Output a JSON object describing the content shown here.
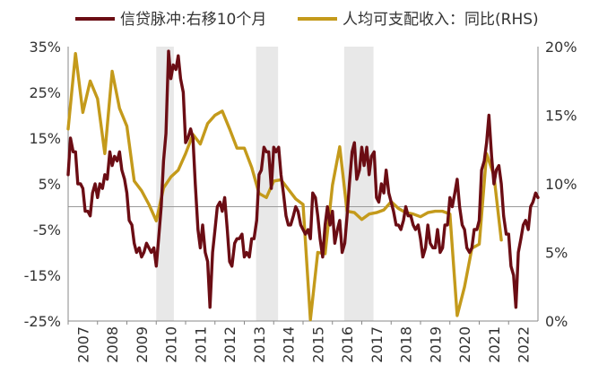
{
  "chart_data": {
    "type": "line",
    "legend_position": "top",
    "colors": {
      "left_series": "#6b0d14",
      "right_series": "#c49a1b",
      "shade": "#e8e8e8",
      "axis": "#888888"
    },
    "x_tick_labels": [
      "2007",
      "2008",
      "2009",
      "2010",
      "2011",
      "2012",
      "2013",
      "2014",
      "2015",
      "2016",
      "2017",
      "2018",
      "2019",
      "2020",
      "2021",
      "2022"
    ],
    "left_axis": {
      "range": [
        -25,
        35
      ],
      "ticks": [
        -25,
        -15,
        -5,
        5,
        15,
        25,
        35
      ],
      "tick_labels": [
        "-25%",
        "-15%",
        "-5%",
        "5%",
        "15%",
        "25%",
        "35%"
      ]
    },
    "right_axis": {
      "range": [
        0,
        20
      ],
      "ticks": [
        0,
        5,
        10,
        15,
        20
      ],
      "tick_labels": [
        "0%",
        "5%",
        "10%",
        "15%",
        "20%"
      ]
    },
    "shaded_periods": [
      [
        2010.0,
        2010.6
      ],
      [
        2013.4,
        2014.15
      ],
      [
        2016.4,
        2017.4
      ]
    ],
    "series": [
      {
        "name": "信贷脉冲:右移10个月",
        "axis": "left",
        "points": [
          [
            2007.0,
            7
          ],
          [
            2007.08,
            15
          ],
          [
            2007.17,
            12
          ],
          [
            2007.25,
            12
          ],
          [
            2007.33,
            5
          ],
          [
            2007.42,
            5
          ],
          [
            2007.5,
            4
          ],
          [
            2007.58,
            -1
          ],
          [
            2007.67,
            -1
          ],
          [
            2007.75,
            -2
          ],
          [
            2007.83,
            3
          ],
          [
            2007.92,
            5
          ],
          [
            2008.0,
            2
          ],
          [
            2008.08,
            5
          ],
          [
            2008.17,
            4
          ],
          [
            2008.25,
            7
          ],
          [
            2008.33,
            6
          ],
          [
            2008.42,
            12
          ],
          [
            2008.5,
            9
          ],
          [
            2008.58,
            11
          ],
          [
            2008.67,
            10
          ],
          [
            2008.75,
            12
          ],
          [
            2008.83,
            8
          ],
          [
            2008.92,
            6
          ],
          [
            2009.0,
            3
          ],
          [
            2009.08,
            -3
          ],
          [
            2009.17,
            -4
          ],
          [
            2009.25,
            -8
          ],
          [
            2009.33,
            -10
          ],
          [
            2009.42,
            -9
          ],
          [
            2009.5,
            -11
          ],
          [
            2009.58,
            -10
          ],
          [
            2009.67,
            -8
          ],
          [
            2009.75,
            -9
          ],
          [
            2009.83,
            -10
          ],
          [
            2009.92,
            -9
          ],
          [
            2010.0,
            -13
          ],
          [
            2010.08,
            -7
          ],
          [
            2010.17,
            0
          ],
          [
            2010.25,
            10
          ],
          [
            2010.33,
            16
          ],
          [
            2010.42,
            34
          ],
          [
            2010.5,
            28
          ],
          [
            2010.58,
            31
          ],
          [
            2010.67,
            30
          ],
          [
            2010.75,
            33
          ],
          [
            2010.83,
            28
          ],
          [
            2010.92,
            25
          ],
          [
            2011.0,
            14
          ],
          [
            2011.08,
            15
          ],
          [
            2011.17,
            17
          ],
          [
            2011.25,
            15
          ],
          [
            2011.33,
            5
          ],
          [
            2011.42,
            -5
          ],
          [
            2011.5,
            -9
          ],
          [
            2011.58,
            -4
          ],
          [
            2011.67,
            -10
          ],
          [
            2011.75,
            -12
          ],
          [
            2011.83,
            -22
          ],
          [
            2011.92,
            -10
          ],
          [
            2012.0,
            -5
          ],
          [
            2012.08,
            0
          ],
          [
            2012.17,
            1
          ],
          [
            2012.25,
            -1
          ],
          [
            2012.33,
            2
          ],
          [
            2012.42,
            -5
          ],
          [
            2012.5,
            -12
          ],
          [
            2012.58,
            -13
          ],
          [
            2012.67,
            -8
          ],
          [
            2012.75,
            -7
          ],
          [
            2012.83,
            -7
          ],
          [
            2012.92,
            -6
          ],
          [
            2013.0,
            -11
          ],
          [
            2013.08,
            -10
          ],
          [
            2013.17,
            -11
          ],
          [
            2013.25,
            -7
          ],
          [
            2013.33,
            -7
          ],
          [
            2013.42,
            -3
          ],
          [
            2013.5,
            7
          ],
          [
            2013.58,
            8
          ],
          [
            2013.67,
            13
          ],
          [
            2013.75,
            12
          ],
          [
            2013.83,
            12
          ],
          [
            2013.92,
            4
          ],
          [
            2014.0,
            13
          ],
          [
            2014.08,
            12
          ],
          [
            2014.17,
            13
          ],
          [
            2014.25,
            7
          ],
          [
            2014.33,
            3
          ],
          [
            2014.42,
            -2
          ],
          [
            2014.5,
            -4
          ],
          [
            2014.58,
            -4
          ],
          [
            2014.67,
            -2
          ],
          [
            2014.75,
            0
          ],
          [
            2014.83,
            -1
          ],
          [
            2014.92,
            -4
          ],
          [
            2015.0,
            -5
          ],
          [
            2015.08,
            -6
          ],
          [
            2015.17,
            -5
          ],
          [
            2015.25,
            -7
          ],
          [
            2015.33,
            3
          ],
          [
            2015.42,
            2
          ],
          [
            2015.5,
            -2
          ],
          [
            2015.58,
            -7
          ],
          [
            2015.67,
            -11
          ],
          [
            2015.75,
            -4
          ],
          [
            2015.83,
            0
          ],
          [
            2015.92,
            -4
          ],
          [
            2016.0,
            -1
          ],
          [
            2016.08,
            -8
          ],
          [
            2016.17,
            -5
          ],
          [
            2016.25,
            -3
          ],
          [
            2016.33,
            -10
          ],
          [
            2016.42,
            -8
          ],
          [
            2016.5,
            -2
          ],
          [
            2016.58,
            5
          ],
          [
            2016.67,
            12
          ],
          [
            2016.75,
            14
          ],
          [
            2016.83,
            6
          ],
          [
            2016.92,
            8
          ],
          [
            2017.0,
            13
          ],
          [
            2017.08,
            9
          ],
          [
            2017.17,
            13
          ],
          [
            2017.25,
            7
          ],
          [
            2017.33,
            11
          ],
          [
            2017.42,
            12
          ],
          [
            2017.5,
            2
          ],
          [
            2017.58,
            1
          ],
          [
            2017.67,
            5
          ],
          [
            2017.75,
            3
          ],
          [
            2017.83,
            8
          ],
          [
            2017.92,
            3
          ],
          [
            2018.0,
            1
          ],
          [
            2018.08,
            -1
          ],
          [
            2018.17,
            -4
          ],
          [
            2018.25,
            -4
          ],
          [
            2018.33,
            -5
          ],
          [
            2018.42,
            -3
          ],
          [
            2018.5,
            0
          ],
          [
            2018.58,
            -2
          ],
          [
            2018.67,
            -2
          ],
          [
            2018.75,
            -4
          ],
          [
            2018.83,
            -5
          ],
          [
            2018.92,
            -4
          ],
          [
            2019.0,
            -7
          ],
          [
            2019.08,
            -11
          ],
          [
            2019.17,
            -9
          ],
          [
            2019.25,
            -4
          ],
          [
            2019.33,
            -8
          ],
          [
            2019.42,
            -9
          ],
          [
            2019.5,
            -9
          ],
          [
            2019.58,
            -5
          ],
          [
            2019.67,
            -10
          ],
          [
            2019.75,
            -9
          ],
          [
            2019.83,
            -4
          ],
          [
            2019.92,
            -4
          ],
          [
            2020.0,
            2
          ],
          [
            2020.08,
            0
          ],
          [
            2020.17,
            3
          ],
          [
            2020.25,
            6
          ],
          [
            2020.33,
            0
          ],
          [
            2020.42,
            -4
          ],
          [
            2020.5,
            -5
          ],
          [
            2020.58,
            -9
          ],
          [
            2020.67,
            -10
          ],
          [
            2020.75,
            -9
          ],
          [
            2020.83,
            -5
          ],
          [
            2020.92,
            -5
          ],
          [
            2021.0,
            -3
          ],
          [
            2021.08,
            8
          ],
          [
            2021.17,
            10
          ],
          [
            2021.25,
            14
          ],
          [
            2021.33,
            20
          ],
          [
            2021.42,
            11
          ],
          [
            2021.5,
            5
          ],
          [
            2021.58,
            8
          ],
          [
            2021.67,
            9
          ],
          [
            2021.75,
            5
          ],
          [
            2021.83,
            -2
          ],
          [
            2021.92,
            -6
          ],
          [
            2022.0,
            -6
          ],
          [
            2022.08,
            -13
          ],
          [
            2022.17,
            -15
          ],
          [
            2022.25,
            -22
          ],
          [
            2022.33,
            -10
          ],
          [
            2022.42,
            -7
          ],
          [
            2022.5,
            -4
          ],
          [
            2022.58,
            -3
          ],
          [
            2022.67,
            -5
          ],
          [
            2022.75,
            0
          ],
          [
            2022.83,
            1
          ],
          [
            2022.92,
            3
          ],
          [
            2023.0,
            2
          ]
        ]
      },
      {
        "name": "人均可支配收入：同比(RHS)",
        "axis": "right",
        "points": [
          [
            2007.0,
            14
          ],
          [
            2007.25,
            19.5
          ],
          [
            2007.5,
            15.2
          ],
          [
            2007.75,
            17.5
          ],
          [
            2008.0,
            16.2
          ],
          [
            2008.25,
            12.2
          ],
          [
            2008.5,
            18.2
          ],
          [
            2008.75,
            15.5
          ],
          [
            2009.0,
            14.2
          ],
          [
            2009.25,
            10.2
          ],
          [
            2009.5,
            9.5
          ],
          [
            2009.75,
            8.5
          ],
          [
            2010.0,
            7.3
          ],
          [
            2010.25,
            9.7
          ],
          [
            2010.5,
            10.5
          ],
          [
            2010.75,
            11.0
          ],
          [
            2011.0,
            12.2
          ],
          [
            2011.25,
            13.6
          ],
          [
            2011.5,
            12.9
          ],
          [
            2011.75,
            14.4
          ],
          [
            2012.0,
            15.0
          ],
          [
            2012.25,
            15.3
          ],
          [
            2012.5,
            14.0
          ],
          [
            2012.75,
            12.6
          ],
          [
            2013.0,
            12.6
          ],
          [
            2013.25,
            11.2
          ],
          [
            2013.5,
            9.3
          ],
          [
            2013.75,
            9.0
          ],
          [
            2014.0,
            10.2
          ],
          [
            2014.25,
            10.3
          ],
          [
            2014.5,
            9.6
          ],
          [
            2014.75,
            8.9
          ],
          [
            2015.0,
            8.5
          ],
          [
            2015.25,
            0.1
          ],
          [
            2015.5,
            5.0
          ],
          [
            2015.75,
            4.9
          ],
          [
            2016.0,
            9.9
          ],
          [
            2016.25,
            12.7
          ],
          [
            2016.5,
            8.0
          ],
          [
            2016.75,
            7.9
          ],
          [
            2017.0,
            7.4
          ],
          [
            2017.25,
            7.8
          ],
          [
            2017.5,
            7.9
          ],
          [
            2017.75,
            8.1
          ],
          [
            2018.0,
            8.7
          ],
          [
            2018.25,
            8.2
          ],
          [
            2018.5,
            7.9
          ],
          [
            2018.75,
            7.8
          ],
          [
            2019.0,
            7.6
          ],
          [
            2019.25,
            7.9
          ],
          [
            2019.5,
            8.0
          ],
          [
            2019.75,
            8.0
          ],
          [
            2020.0,
            7.8
          ],
          [
            2020.25,
            0.4
          ],
          [
            2020.5,
            2.5
          ],
          [
            2020.75,
            5.3
          ],
          [
            2021.0,
            5.6
          ],
          [
            2021.25,
            12.2
          ],
          [
            2021.5,
            10.6
          ],
          [
            2021.75,
            5.9
          ]
        ]
      }
    ]
  }
}
